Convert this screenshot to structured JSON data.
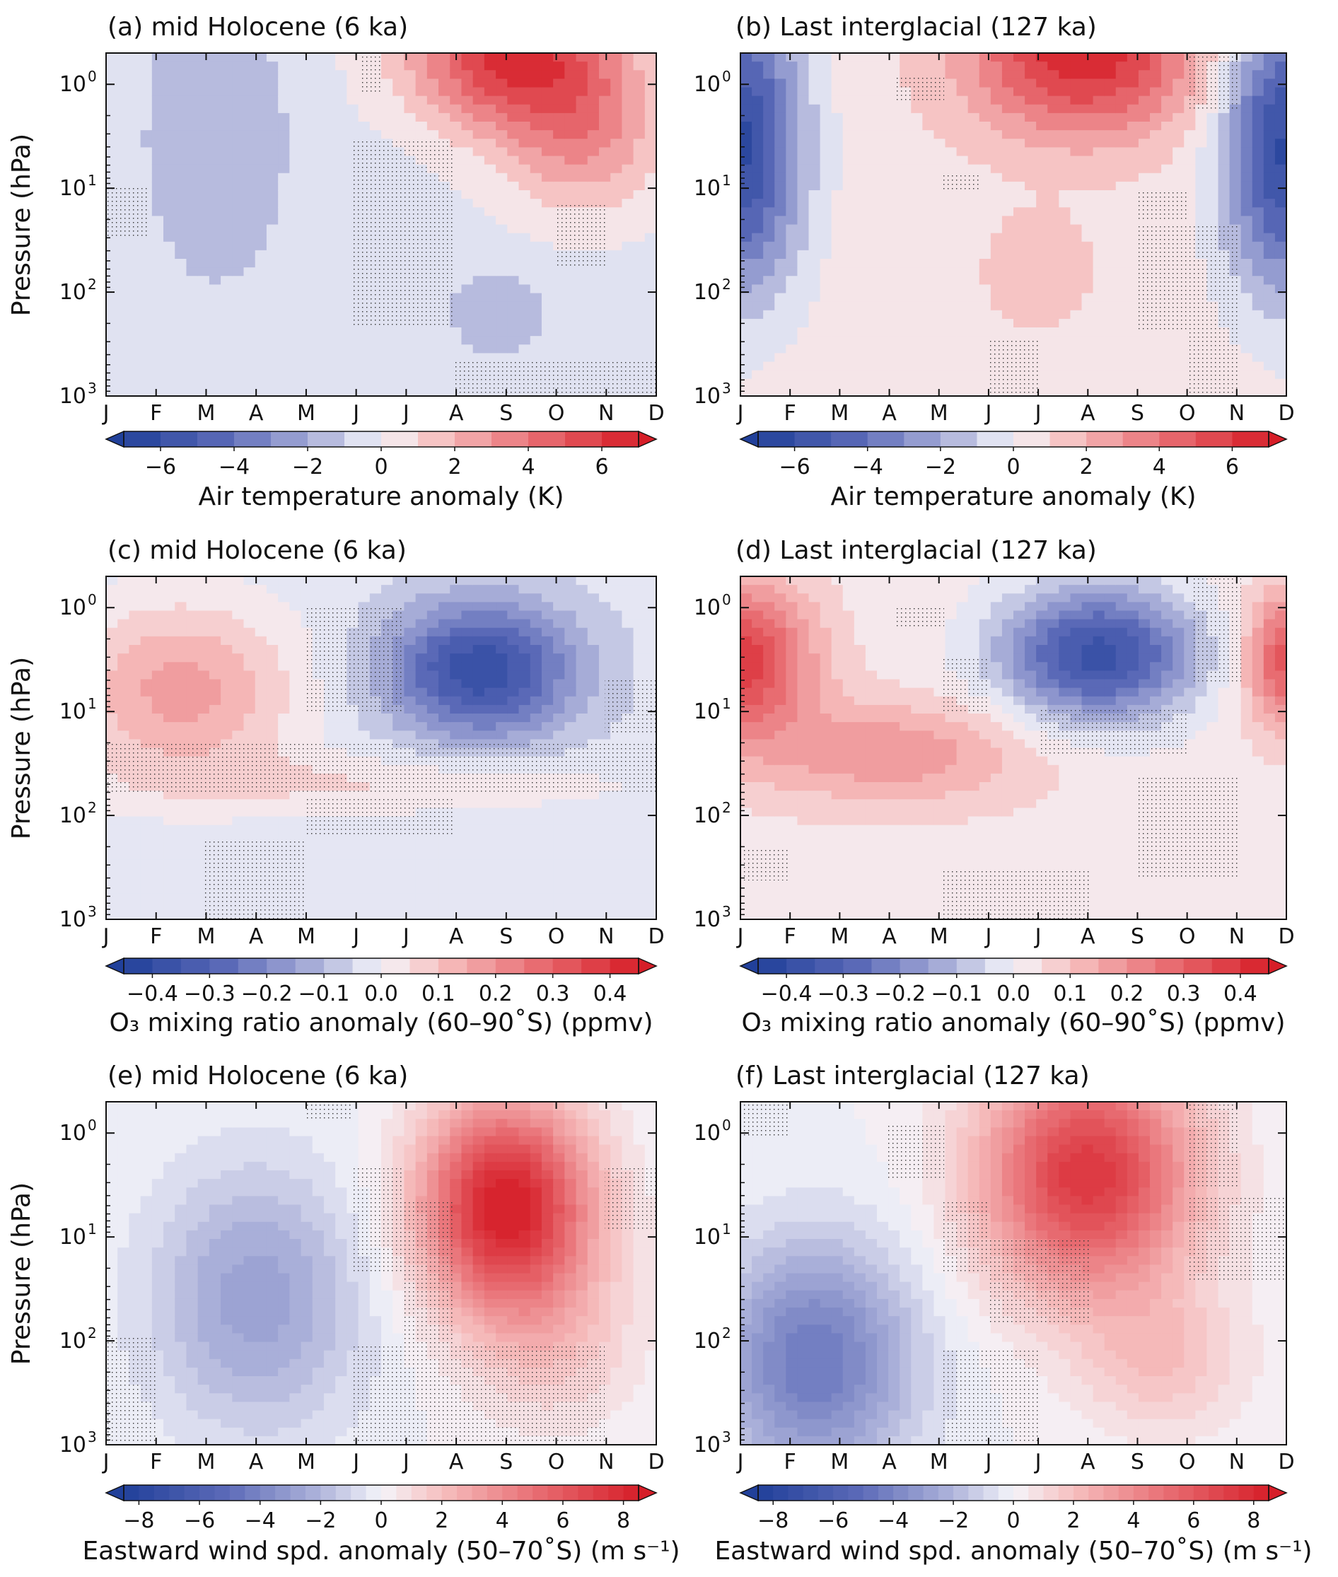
{
  "chart_data": [
    {
      "type": "heatmap",
      "title": "(a) mid Holocene (6 ka)",
      "ylabel": "Pressure (hPa)",
      "yscale": "log",
      "ylim": [
        1000,
        0.5
      ],
      "xcategories": [
        "J",
        "F",
        "M",
        "A",
        "M",
        "J",
        "J",
        "A",
        "S",
        "O",
        "N",
        "D"
      ],
      "yticks": [
        "10",
        "10",
        "10",
        "10"
      ],
      "yexps": [
        "0",
        "1",
        "2",
        "3"
      ],
      "colorbar": {
        "label": "Air temperature anomaly (K)",
        "vmin": -7,
        "vmax": 7,
        "step": 1,
        "ticks": [
          "−6",
          "−4",
          "−2",
          "0",
          "2",
          "4",
          "6"
        ]
      },
      "field": {
        "background": -0.4,
        "blobs": [
          {
            "mon": 8.1,
            "logp": -0.3,
            "smon": 1.5,
            "slog": 0.5,
            "amp": 6.4
          },
          {
            "mon": 9.5,
            "logp": 0.5,
            "smon": 1.2,
            "slog": 0.55,
            "amp": 3.2
          },
          {
            "mon": 2.2,
            "logp": 0.5,
            "smon": 1.0,
            "slog": 1.0,
            "amp": -1.6
          },
          {
            "mon": 7.8,
            "logp": 2.2,
            "smon": 0.7,
            "slog": 0.3,
            "amp": -1.4
          }
        ]
      }
    },
    {
      "type": "heatmap",
      "title": "(b) Last interglacial (127 ka)",
      "ylabel": "",
      "yscale": "log",
      "ylim": [
        1000,
        0.5
      ],
      "xcategories": [
        "J",
        "F",
        "M",
        "A",
        "M",
        "J",
        "J",
        "A",
        "S",
        "O",
        "N",
        "D"
      ],
      "yticks": [
        "10",
        "10",
        "10",
        "10"
      ],
      "yexps": [
        "0",
        "1",
        "2",
        "3"
      ],
      "colorbar": {
        "label": "Air temperature anomaly (K)",
        "vmin": -7,
        "vmax": 7,
        "step": 1,
        "ticks": [
          "−6",
          "−4",
          "−2",
          "0",
          "2",
          "4",
          "6"
        ]
      },
      "field": {
        "background": 0.6,
        "blobs": [
          {
            "mon": 6.9,
            "logp": -0.3,
            "smon": 1.6,
            "slog": 0.55,
            "amp": 6.2
          },
          {
            "mon": 0.0,
            "logp": 0.6,
            "smon": 0.9,
            "slog": 1.0,
            "amp": -6.8
          },
          {
            "mon": 11.0,
            "logp": 0.6,
            "smon": 0.9,
            "slog": 1.0,
            "amp": -6.8
          },
          {
            "mon": 6.0,
            "logp": 1.8,
            "smon": 0.7,
            "slog": 0.35,
            "amp": 1.4
          }
        ]
      }
    },
    {
      "type": "heatmap",
      "title": "(c) mid Holocene (6 ka)",
      "ylabel": "Pressure (hPa)",
      "yscale": "log",
      "ylim": [
        1000,
        0.5
      ],
      "xcategories": [
        "J",
        "F",
        "M",
        "A",
        "M",
        "J",
        "J",
        "A",
        "S",
        "O",
        "N",
        "D"
      ],
      "yticks": [
        "10",
        "10",
        "10",
        "10"
      ],
      "yexps": [
        "0",
        "1",
        "2",
        "3"
      ],
      "colorbar": {
        "label": "O₃ mixing ratio anomaly (60–90˚S) (ppmv)",
        "vmin": -0.45,
        "vmax": 0.45,
        "step": 0.05,
        "ticks": [
          "−0.4",
          "−0.3",
          "−0.2",
          "−0.1",
          "0.0",
          "0.1",
          "0.2",
          "0.3",
          "0.4"
        ]
      },
      "field": {
        "background": -0.03,
        "blobs": [
          {
            "mon": 7.5,
            "logp": 0.6,
            "smon": 1.3,
            "slog": 0.45,
            "amp": -0.36
          },
          {
            "mon": 1.5,
            "logp": 0.8,
            "smon": 1.6,
            "slog": 0.6,
            "amp": 0.2
          },
          {
            "mon": 5.5,
            "logp": 1.7,
            "smon": 3.5,
            "slog": 0.2,
            "amp": 0.08
          }
        ]
      }
    },
    {
      "type": "heatmap",
      "title": "(d) Last interglacial (127 ka)",
      "ylabel": "",
      "yscale": "log",
      "ylim": [
        1000,
        0.5
      ],
      "xcategories": [
        "J",
        "F",
        "M",
        "A",
        "M",
        "J",
        "J",
        "A",
        "S",
        "O",
        "N",
        "D"
      ],
      "yticks": [
        "10",
        "10",
        "10",
        "10"
      ],
      "yexps": [
        "0",
        "1",
        "2",
        "3"
      ],
      "colorbar": {
        "label": "O₃ mixing ratio anomaly (60–90˚S) (ppmv)",
        "vmin": -0.45,
        "vmax": 0.45,
        "step": 0.05,
        "ticks": [
          "−0.4",
          "−0.3",
          "−0.2",
          "−0.1",
          "0.0",
          "0.1",
          "0.2",
          "0.3",
          "0.4"
        ]
      },
      "field": {
        "background": 0.03,
        "blobs": [
          {
            "mon": 7.2,
            "logp": 0.45,
            "smon": 1.4,
            "slog": 0.45,
            "amp": -0.4
          },
          {
            "mon": 0.0,
            "logp": 0.5,
            "smon": 1.0,
            "slog": 0.5,
            "amp": 0.36
          },
          {
            "mon": 11.0,
            "logp": 0.5,
            "smon": 0.6,
            "slog": 0.45,
            "amp": 0.3
          },
          {
            "mon": 3.0,
            "logp": 1.4,
            "smon": 2.0,
            "slog": 0.35,
            "amp": 0.16
          }
        ]
      }
    },
    {
      "type": "heatmap",
      "title": "(e) mid Holocene (6 ka)",
      "ylabel": "Pressure (hPa)",
      "yscale": "log",
      "ylim": [
        1000,
        0.5
      ],
      "xcategories": [
        "J",
        "F",
        "M",
        "A",
        "M",
        "J",
        "J",
        "A",
        "S",
        "O",
        "N",
        "D"
      ],
      "yticks": [
        "10",
        "10",
        "10",
        "10"
      ],
      "yexps": [
        "0",
        "1",
        "2",
        "3"
      ],
      "colorbar": {
        "label": "Eastward wind spd. anomaly (50–70˚S) (m s⁻¹)",
        "vmin": -8.5,
        "vmax": 8.5,
        "step": 0.5,
        "ticks": [
          "−8",
          "−6",
          "−4",
          "−2",
          "0",
          "2",
          "4",
          "6",
          "8"
        ]
      },
      "field": {
        "background": 0.0,
        "blobs": [
          {
            "mon": 8.0,
            "logp": 0.7,
            "smon": 1.2,
            "slog": 0.7,
            "amp": 8.6
          },
          {
            "mon": 3.0,
            "logp": 1.6,
            "smon": 1.5,
            "slog": 0.9,
            "amp": -2.8
          },
          {
            "mon": 9.0,
            "logp": 2.0,
            "smon": 1.2,
            "slog": 0.6,
            "amp": 1.5
          }
        ]
      }
    },
    {
      "type": "heatmap",
      "title": "(f) Last interglacial (127 ka)",
      "ylabel": "",
      "yscale": "log",
      "ylim": [
        1000,
        0.5
      ],
      "xcategories": [
        "J",
        "F",
        "M",
        "A",
        "M",
        "J",
        "J",
        "A",
        "S",
        "O",
        "N",
        "D"
      ],
      "yticks": [
        "10",
        "10",
        "10",
        "10"
      ],
      "yexps": [
        "0",
        "1",
        "2",
        "3"
      ],
      "colorbar": {
        "label": "Eastward wind spd. anomaly (50–70˚S) (m s⁻¹)",
        "vmin": -8.5,
        "vmax": 8.5,
        "step": 0.5,
        "ticks": [
          "−8",
          "−6",
          "−4",
          "−2",
          "0",
          "2",
          "4",
          "6",
          "8"
        ]
      },
      "field": {
        "background": 0.0,
        "blobs": [
          {
            "mon": 7.0,
            "logp": 0.4,
            "smon": 1.5,
            "slog": 0.8,
            "amp": 7.4
          },
          {
            "mon": 1.5,
            "logp": 2.2,
            "smon": 1.4,
            "slog": 0.8,
            "amp": -4.5
          },
          {
            "mon": 8.5,
            "logp": 2.2,
            "smon": 1.2,
            "slog": 0.5,
            "amp": 1.8
          }
        ]
      }
    }
  ]
}
